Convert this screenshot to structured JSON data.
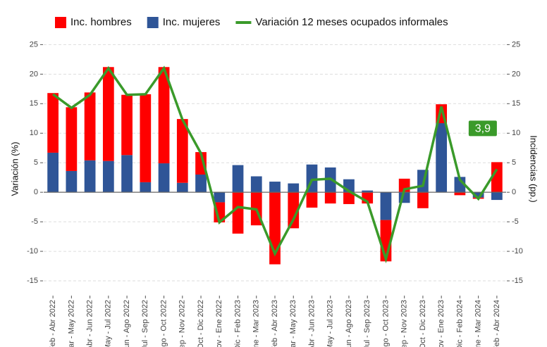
{
  "chart_data": {
    "type": "bar_line",
    "y_label": "Variación (%)",
    "y2_label": "Incidencias (pp.)",
    "categories": [
      "Feb - Abr 2022",
      "Mar - May 2022",
      "Abr - Jun 2022",
      "May - Jul 2022",
      "Jun - Ago 2022",
      "Jul - Sep 2022",
      "Ago - Oct 2022",
      "Sep - Nov 2022",
      "Oct - Dic 2022",
      "Nov - Ene 2022",
      "Dic - Feb 2023",
      "Ene - Mar 2023",
      "Feb - Abr 2023",
      "Mar - May 2023",
      "Abr - Jun 2023",
      "May - Jul 2023",
      "Jun - Ago 2023",
      "Jul - Sep 2023",
      "Ago - Oct 2023",
      "Sep - Nov 2023",
      "Oct - Dic 2023",
      "Nov - Ene 2023",
      "Dic - Feb 2024",
      "Ene - Mar 2024",
      "Feb - Abr 2024"
    ],
    "series": [
      {
        "name": "Inc. hombres",
        "color": "#ff0000",
        "kind": "bar",
        "axis": "y2",
        "values": [
          10.1,
          10.8,
          11.5,
          15.9,
          10.2,
          14.9,
          16.3,
          10.8,
          3.8,
          -3.4,
          -7.0,
          -5.6,
          -12.2,
          -6.1,
          -2.6,
          -1.9,
          -2.0,
          -1.9,
          -7.0,
          2.3,
          -2.7,
          3.2,
          -0.5,
          -0.2,
          5.1
        ]
      },
      {
        "name": "Inc. mujeres",
        "color": "#2f5597",
        "kind": "bar",
        "axis": "y2",
        "values": [
          6.7,
          3.6,
          5.4,
          5.3,
          6.3,
          1.7,
          4.9,
          1.6,
          3.0,
          -1.7,
          4.6,
          2.7,
          1.8,
          1.5,
          4.7,
          4.2,
          2.2,
          0.3,
          -4.7,
          -1.8,
          3.8,
          11.7,
          2.6,
          -0.9,
          -1.3
        ]
      },
      {
        "name": "Variación 12 meses ocupados informales",
        "color": "#3a9a2a",
        "kind": "line",
        "values": [
          16.6,
          14.3,
          16.5,
          21.0,
          16.5,
          16.6,
          21.0,
          12.3,
          6.6,
          -5.1,
          -2.5,
          -2.9,
          -10.4,
          -4.6,
          2.1,
          2.3,
          0.2,
          -1.6,
          -11.3,
          0.5,
          1.1,
          14.5,
          2.1,
          -1.1,
          3.9
        ],
        "value_labels": [
          null,
          null,
          null,
          null,
          null,
          null,
          null,
          null,
          null,
          null,
          null,
          null,
          null,
          null,
          null,
          null,
          null,
          null,
          null,
          null,
          null,
          null,
          null,
          null,
          "3,9"
        ]
      }
    ],
    "ylim": [
      -17.5,
      26
    ],
    "yticks": [
      -15,
      -10,
      -5,
      0,
      5,
      10,
      15,
      20,
      25
    ],
    "y2lim": [
      -17.5,
      26
    ],
    "y2ticks": [
      -15,
      -10,
      -5,
      0,
      5,
      10,
      15,
      20,
      25
    ],
    "grid": true,
    "legend": "top"
  }
}
